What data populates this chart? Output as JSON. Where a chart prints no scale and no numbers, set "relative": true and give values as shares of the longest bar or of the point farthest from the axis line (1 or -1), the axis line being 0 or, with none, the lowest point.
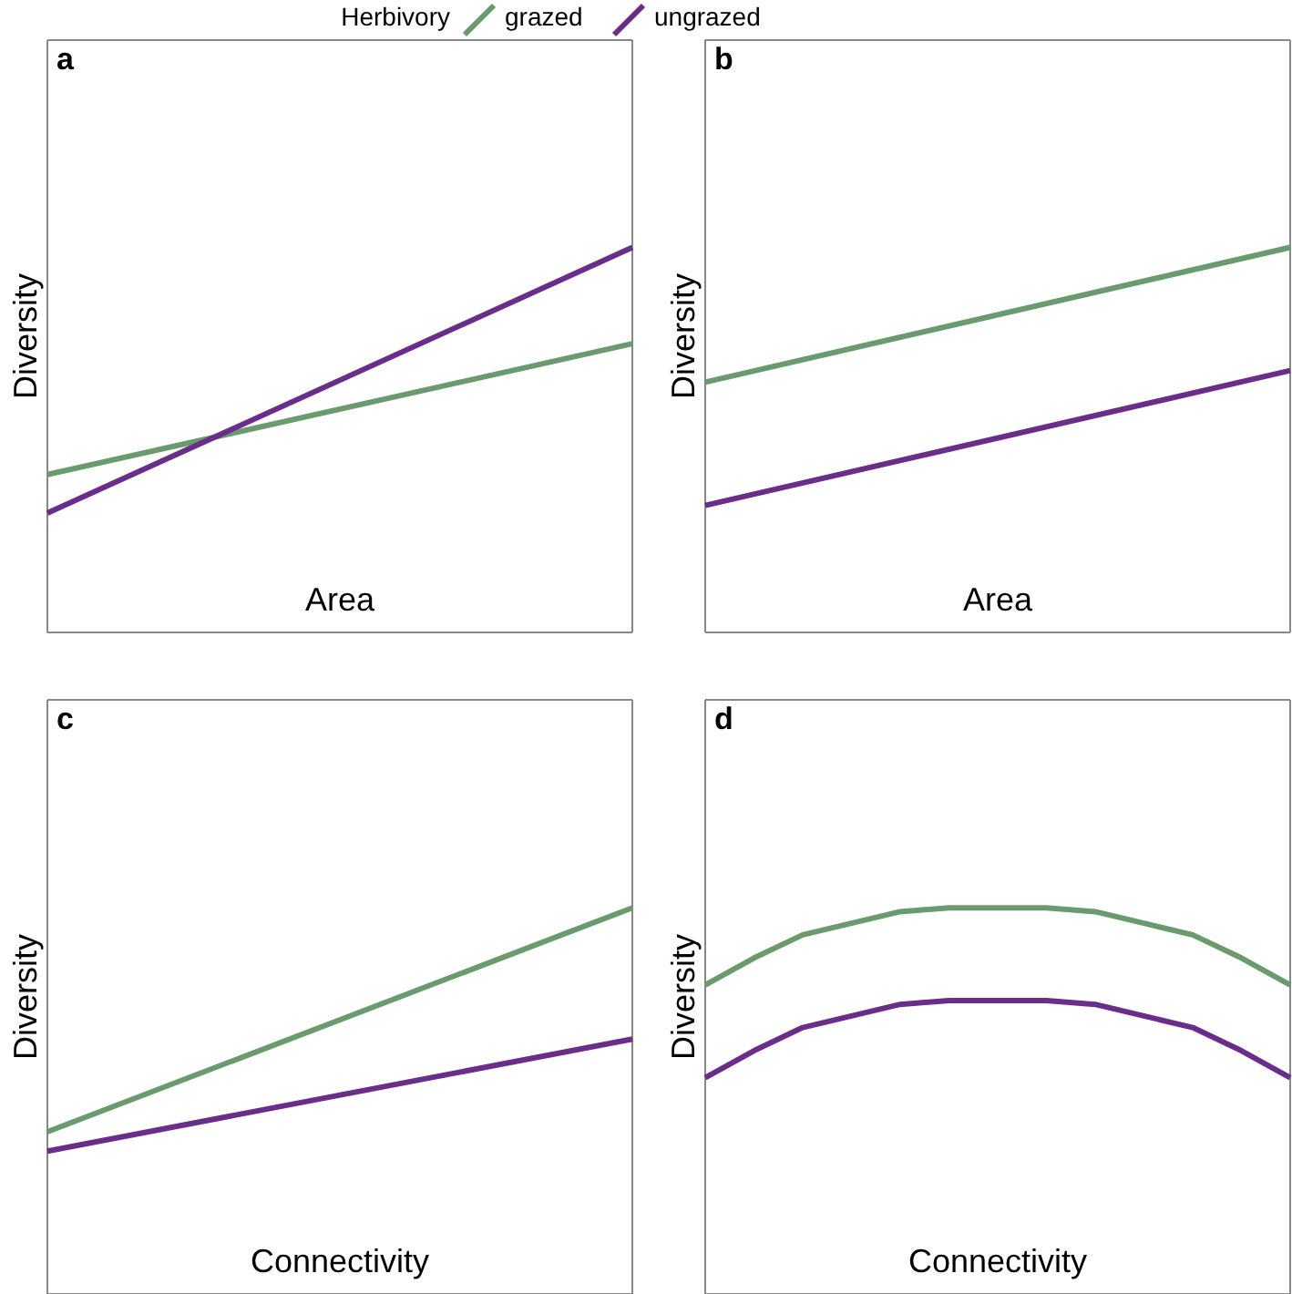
{
  "chart_data": [
    {
      "type": "line",
      "title": "a",
      "xlabel": "Area",
      "ylabel": "Diversity",
      "relative": true,
      "categories": [
        null,
        null
      ],
      "legend": "top",
      "legend_title": "Herbivory",
      "series": [
        {
          "name": "grazed",
          "color": "#6a9a6e",
          "values": [
            0.41,
            0.75
          ]
        },
        {
          "name": "ungrazed",
          "color": "#6b2d8a",
          "values": [
            0.31,
            1
          ]
        }
      ]
    },
    {
      "type": "line",
      "title": "b",
      "xlabel": "Area",
      "ylabel": "Diversity",
      "relative": true,
      "categories": [
        null,
        null
      ],
      "series": [
        {
          "color": "#6a9a6e",
          "values": [
            0.65,
            1
          ]
        },
        {
          "color": "#6b2d8a",
          "values": [
            0.33,
            0.68
          ]
        }
      ]
    },
    {
      "type": "line",
      "title": "c",
      "xlabel": "Connectivity",
      "ylabel": "Diversity",
      "relative": true,
      "categories": [
        null,
        null
      ],
      "series": [
        {
          "color": "#6a9a6e",
          "values": [
            0.42,
            1
          ]
        },
        {
          "color": "#6b2d8a",
          "values": [
            0.37,
            0.66
          ]
        }
      ]
    },
    {
      "type": "line",
      "title": "d",
      "xlabel": "Connectivity",
      "ylabel": "Diversity",
      "relative": true,
      "categories": [
        null,
        null,
        null,
        null,
        null,
        null,
        null,
        null,
        null,
        null,
        null,
        null,
        null
      ],
      "series": [
        {
          "color": "#6a9a6e",
          "values": [
            0.8,
            0.87,
            0.93,
            0.96,
            0.99,
            1,
            1,
            1,
            0.99,
            0.96,
            0.93,
            0.87,
            0.8
          ]
        },
        {
          "color": "#6b2d8a",
          "values": [
            0.56,
            0.63,
            0.69,
            0.72,
            0.75,
            0.76,
            0.76,
            0.76,
            0.75,
            0.72,
            0.69,
            0.63,
            0.56
          ]
        }
      ]
    }
  ]
}
